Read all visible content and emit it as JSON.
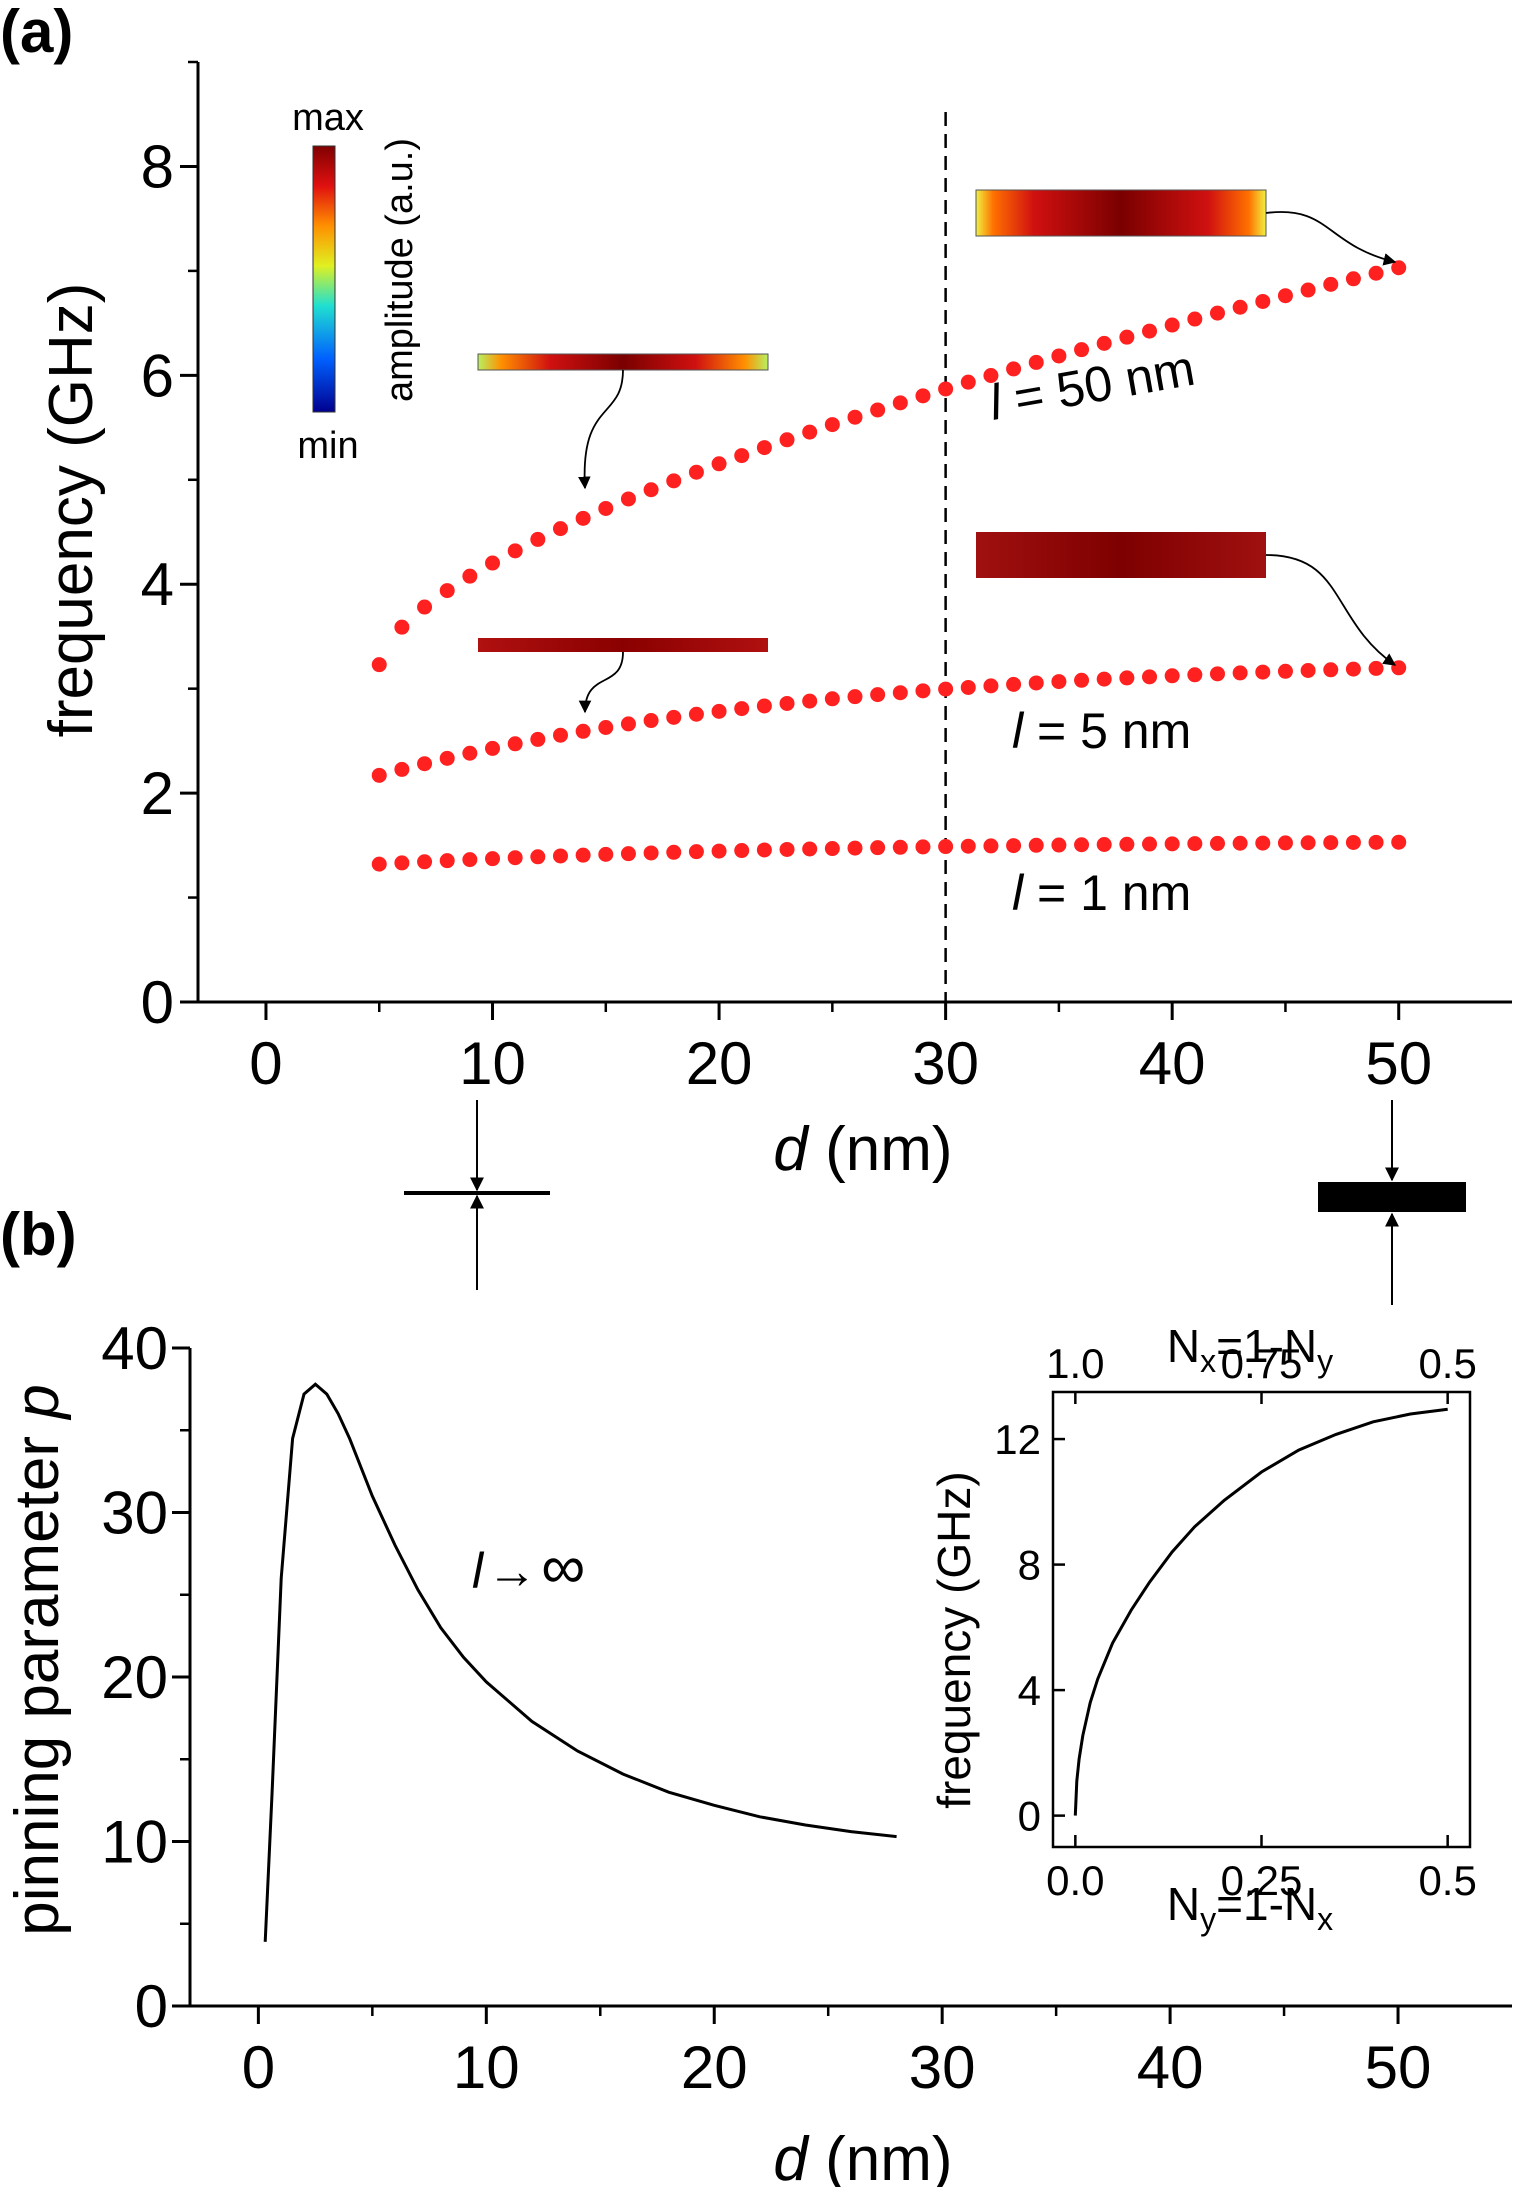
{
  "panel_a": {
    "label": "(a)"
  },
  "panel_b": {
    "label": "(b)"
  },
  "colorbar": {
    "max_label": "max",
    "min_label": "min",
    "title": "amplitude (a.u.)"
  },
  "chart_data": [
    {
      "type": "scatter",
      "id": "a",
      "xlabel_italic": "d",
      "xlabel_rest": " (nm)",
      "ylabel": "frequency (GHz)",
      "xlim": [
        -3,
        55
      ],
      "ylim": [
        0,
        9
      ],
      "xticks": [
        0,
        10,
        20,
        30,
        40,
        50
      ],
      "yticks": [
        0,
        2,
        4,
        6,
        8
      ],
      "vline_x": 30,
      "point_color": "#ff2020",
      "series": [
        {
          "annotation_italic": "l",
          "annotation_rest": " = 50 nm",
          "x_start": 5,
          "x_end": 50,
          "count": 46,
          "f_start": 3.23,
          "f_end": 7.03,
          "shape": "sqrt"
        },
        {
          "annotation_italic": "l",
          "annotation_rest": " = 5 nm",
          "x_start": 5,
          "x_end": 50,
          "count": 46,
          "f_start": 2.17,
          "f_end": 3.2,
          "shape": "sat"
        },
        {
          "annotation_italic": "l",
          "annotation_rest": " = 1 nm",
          "x_start": 5,
          "x_end": 50,
          "count": 46,
          "f_start": 1.32,
          "f_end": 1.53,
          "shape": "sat"
        }
      ]
    },
    {
      "type": "line",
      "id": "b",
      "xlabel_italic": "d",
      "xlabel_rest": " (nm)",
      "ylabel_rest": "pinning parameter ",
      "ylabel_italic": "p",
      "xlim": [
        -3,
        55
      ],
      "ylim": [
        0,
        40
      ],
      "xticks": [
        0,
        10,
        20,
        30,
        40,
        50
      ],
      "yticks": [
        0,
        10,
        20,
        30,
        40
      ],
      "annotation_italic": "l",
      "annotation_arrow": "→",
      "annotation_rest": "∞",
      "x": [
        0.3,
        0.6,
        1.0,
        1.5,
        2.0,
        2.5,
        3.0,
        3.5,
        4.0,
        5.0,
        6.0,
        7.0,
        8.0,
        9.0,
        10.0,
        12.0,
        14.0,
        16.0,
        18.0,
        20.0,
        22.0,
        24.0,
        26.0,
        28.0
      ],
      "y": [
        3.9,
        13.0,
        26.0,
        34.5,
        37.2,
        37.8,
        37.2,
        36.0,
        34.5,
        31.0,
        28.0,
        25.3,
        23.0,
        21.2,
        19.7,
        17.3,
        15.5,
        14.1,
        13.0,
        12.2,
        11.5,
        11.0,
        10.6,
        10.3
      ]
    },
    {
      "type": "line",
      "id": "b_inset",
      "xlabel_main": "N",
      "xlabel_sub1": "y",
      "xlabel_mid": "=1-N",
      "xlabel_sub2": "x",
      "top_xlabel_main": "N",
      "top_xlabel_sub1": "x",
      "top_xlabel_mid": "=1-N",
      "top_xlabel_sub2": "y",
      "ylabel": "frequency (GHz)",
      "xlim": [
        -0.03,
        0.53
      ],
      "ylim": [
        -1,
        13.5
      ],
      "xticks": [
        0.0,
        0.25,
        0.5
      ],
      "xtick_labels": [
        "0.0",
        "0.25",
        "0.5"
      ],
      "top_xtick_labels": [
        "1.0",
        "0.75",
        "0.5"
      ],
      "yticks": [
        0,
        4,
        8,
        12
      ],
      "x": [
        0.0,
        0.002,
        0.005,
        0.01,
        0.02,
        0.03,
        0.05,
        0.075,
        0.1,
        0.13,
        0.16,
        0.2,
        0.25,
        0.3,
        0.35,
        0.4,
        0.45,
        0.5
      ],
      "y": [
        0.0,
        1.1,
        1.8,
        2.55,
        3.6,
        4.35,
        5.5,
        6.55,
        7.45,
        8.4,
        9.2,
        10.05,
        10.95,
        11.65,
        12.15,
        12.55,
        12.8,
        12.95
      ]
    }
  ]
}
